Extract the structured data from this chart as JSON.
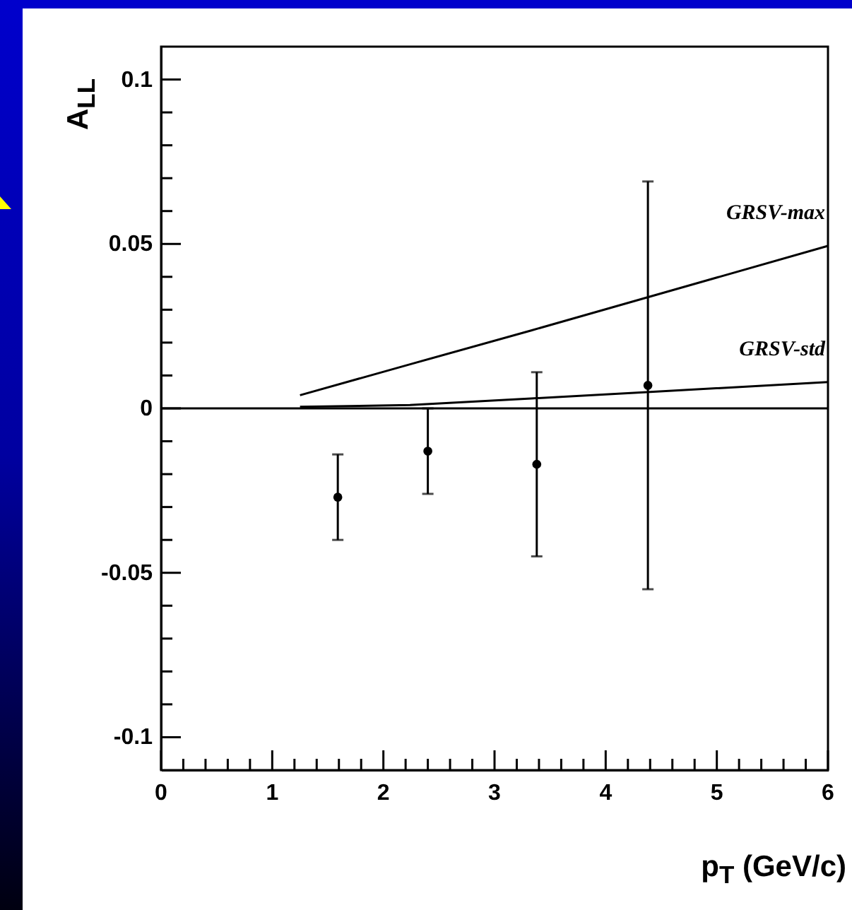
{
  "chart_data": {
    "type": "scatter",
    "xlabel": "p$_{T}$ (GeV/c)",
    "ylabel": "A$_{LL}$",
    "xlim": [
      0,
      6
    ],
    "ylim": [
      -0.11,
      0.11
    ],
    "xticks": [
      0,
      {
        "value": 0.2,
        "label": null
      },
      {
        "value": 0.4,
        "label": null
      },
      {
        "value": 0.6,
        "label": null
      },
      {
        "value": 0.8,
        "label": null
      },
      1,
      {
        "value": 1.2,
        "label": null
      },
      {
        "value": 1.4,
        "label": null
      },
      {
        "value": 1.6,
        "label": null
      },
      {
        "value": 1.8,
        "label": null
      },
      2,
      {
        "value": 2.2,
        "label": null
      },
      {
        "value": 2.4,
        "label": null
      },
      {
        "value": 2.6,
        "label": null
      },
      {
        "value": 2.8,
        "label": null
      },
      3,
      {
        "value": 3.2,
        "label": null
      },
      {
        "value": 3.4,
        "label": null
      },
      {
        "value": 3.6,
        "label": null
      },
      {
        "value": 3.8,
        "label": null
      },
      4,
      {
        "value": 4.2,
        "label": null
      },
      {
        "value": 4.4,
        "label": null
      },
      {
        "value": 4.6,
        "label": null
      },
      {
        "value": 4.8,
        "label": null
      },
      5,
      {
        "value": 5.2,
        "label": null
      },
      {
        "value": 5.4,
        "label": null
      },
      {
        "value": 5.6,
        "label": null
      },
      {
        "value": 5.8,
        "label": null
      },
      6
    ],
    "yticks": [
      -0.1,
      {
        "value": -0.09,
        "label": null
      },
      {
        "value": -0.08,
        "label": null
      },
      {
        "value": -0.07,
        "label": null
      },
      {
        "value": -0.06,
        "label": null
      },
      -0.05,
      {
        "value": -0.04,
        "label": null
      },
      {
        "value": -0.03,
        "label": null
      },
      {
        "value": -0.02,
        "label": null
      },
      {
        "value": -0.01,
        "label": null
      },
      0,
      {
        "value": 0.01,
        "label": null
      },
      {
        "value": 0.02,
        "label": null
      },
      {
        "value": 0.03,
        "label": null
      },
      {
        "value": 0.04,
        "label": null
      },
      0.05,
      {
        "value": 0.06,
        "label": null
      },
      {
        "value": 0.07,
        "label": null
      },
      {
        "value": 0.08,
        "label": null
      },
      {
        "value": 0.09,
        "label": null
      },
      0.1
    ],
    "ref_lines": [
      {
        "axis": "y",
        "value": 0,
        "color": "#000000"
      }
    ],
    "series": [
      {
        "name": "GRSV-max",
        "type": "line",
        "color": "#000000",
        "x": [
          1.25,
          2.24,
          3.33,
          4.4,
          6
        ],
        "values": [
          0.004,
          0.0134,
          0.0237,
          0.034,
          0.0494
        ]
      },
      {
        "name": "GRSV-std",
        "type": "line",
        "color": "#000000",
        "x": [
          1.25,
          2.24,
          3.33,
          4.4,
          6
        ],
        "values": [
          0.0005,
          0.001,
          0.003,
          0.005,
          0.008
        ]
      },
      {
        "color": "#000000",
        "marker": "circle",
        "x": [
          1.59,
          2.4,
          3.38,
          4.38
        ],
        "values": [
          -0.027,
          -0.013,
          -0.017,
          0.007
        ],
        "errors": [
          0.013,
          0.013,
          0.028,
          0.062
        ]
      }
    ]
  }
}
